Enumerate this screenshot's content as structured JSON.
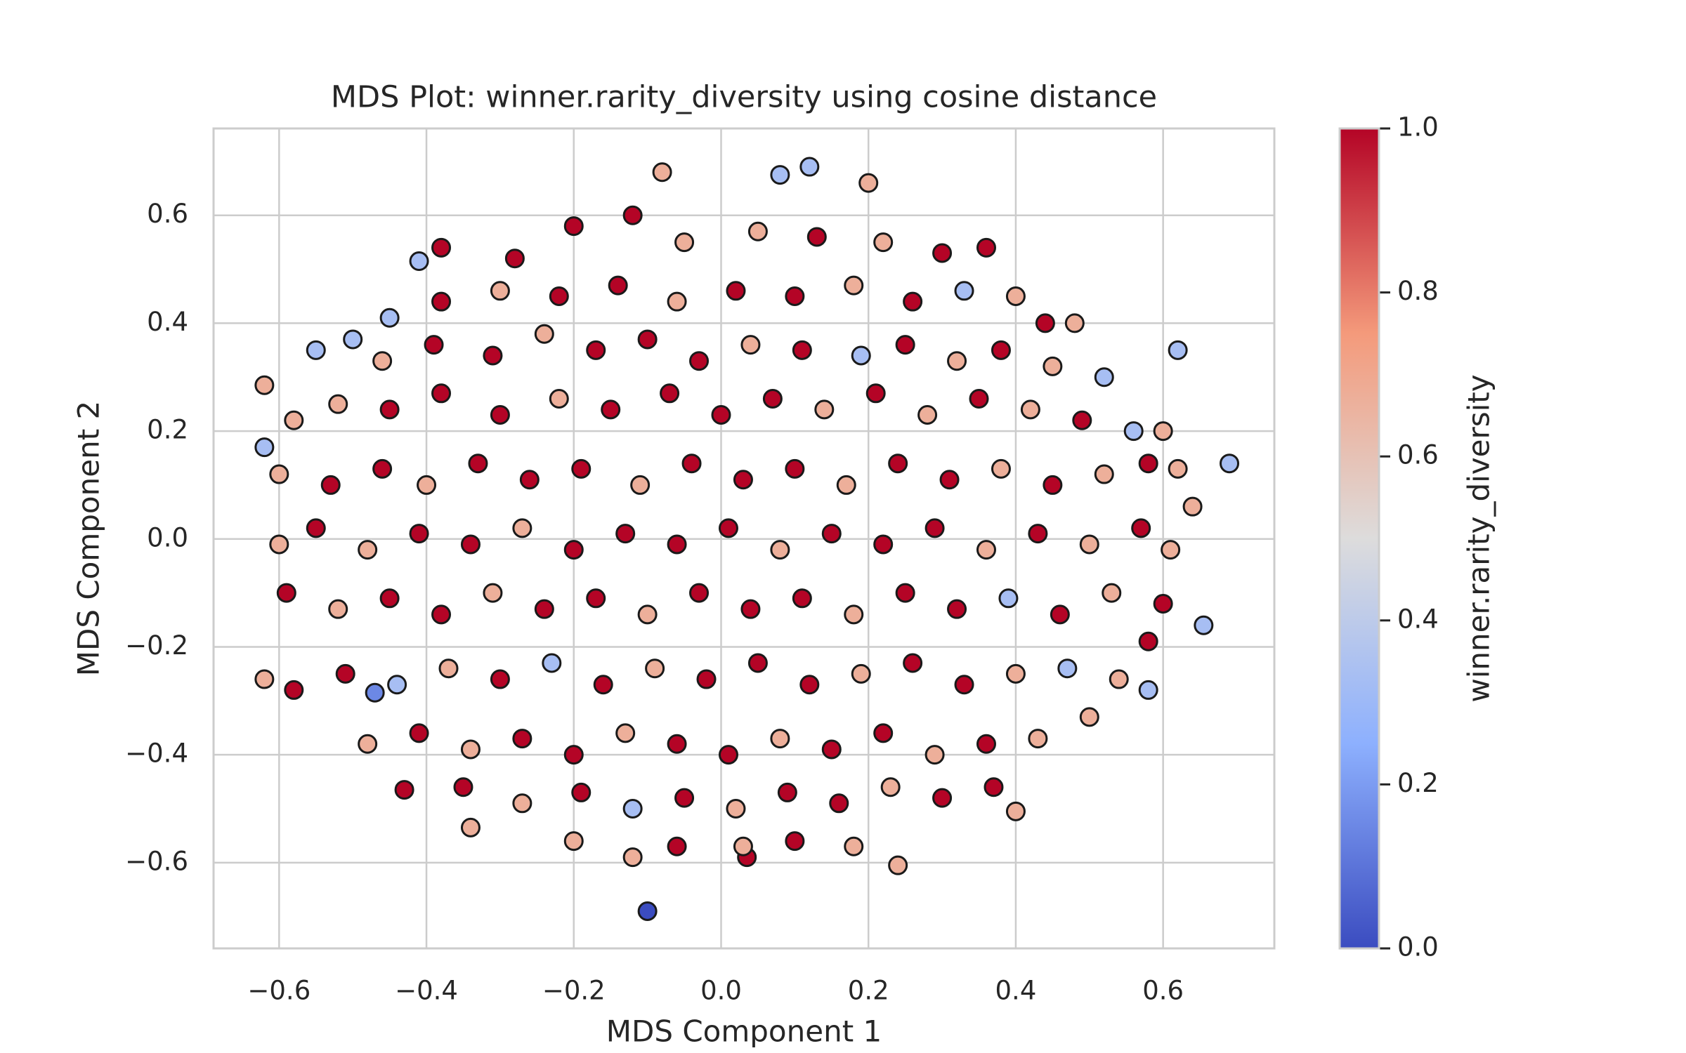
{
  "chart_data": {
    "type": "scatter",
    "title": "MDS Plot: winner.rarity_diversity using cosine distance",
    "x_label": "MDS Component 1",
    "y_label": "MDS Component 2",
    "xlim": [
      -0.689,
      0.751
    ],
    "ylim": [
      -0.759,
      0.761
    ],
    "xticks": [
      {
        "value": -0.6,
        "label": "−0.6"
      },
      {
        "value": -0.4,
        "label": "−0.4"
      },
      {
        "value": -0.2,
        "label": "−0.2"
      },
      {
        "value": 0,
        "label": "0.0"
      },
      0.2,
      0.4,
      0.6
    ],
    "yticks": [
      {
        "value": -0.6,
        "label": "−0.6"
      },
      {
        "value": -0.4,
        "label": "−0.4"
      },
      {
        "value": -0.2,
        "label": "−0.2"
      },
      {
        "value": 0,
        "label": "0.0"
      },
      0.2,
      0.4,
      0.6
    ],
    "grid": true,
    "marker_edge_color": "#1a1a1a",
    "colormap": [
      "#3b4cc0",
      "#8db0fe",
      "#dddcdc",
      "#f49a7b",
      "#b40426"
    ],
    "colorbar": {
      "label": "winner.rarity_diversity",
      "clim": [
        0,
        1
      ],
      "ticks": [
        {
          "value": 0,
          "label": "0.0"
        },
        0.2,
        0.4,
        0.6,
        0.8,
        {
          "value": 1,
          "label": "1.0"
        }
      ]
    },
    "x": [
      0.69,
      -0.62,
      -0.62,
      -0.1,
      -0.08,
      0.12,
      0.08,
      0.2,
      0.655,
      0.62,
      0.64,
      -0.62,
      -0.47,
      -0.43,
      0.24,
      0.035,
      -0.41,
      -0.38,
      0.58,
      0.48,
      0.4,
      -0.34,
      -0.2,
      -0.12,
      -0.05,
      0.05,
      0.13,
      0.22,
      0.3,
      0.36,
      -0.28,
      -0.45,
      -0.38,
      -0.3,
      -0.22,
      -0.14,
      -0.06,
      0.02,
      0.1,
      0.18,
      0.26,
      0.33,
      0.4,
      0.44,
      -0.55,
      -0.5,
      -0.46,
      -0.39,
      -0.31,
      -0.24,
      -0.17,
      -0.1,
      -0.03,
      0.04,
      0.11,
      0.19,
      0.25,
      0.32,
      0.38,
      0.45,
      0.52,
      -0.58,
      -0.52,
      -0.45,
      -0.38,
      -0.3,
      -0.22,
      -0.15,
      -0.07,
      0,
      0.07,
      0.14,
      0.21,
      0.28,
      0.35,
      0.42,
      0.49,
      0.56,
      0.6,
      -0.6,
      -0.53,
      -0.46,
      -0.4,
      -0.33,
      -0.26,
      -0.19,
      -0.11,
      -0.04,
      0.03,
      0.1,
      0.17,
      0.24,
      0.31,
      0.38,
      0.45,
      0.52,
      0.58,
      0.62,
      -0.6,
      -0.55,
      -0.48,
      -0.41,
      -0.34,
      -0.27,
      -0.2,
      -0.13,
      -0.06,
      0.01,
      0.08,
      0.15,
      0.22,
      0.29,
      0.36,
      0.43,
      0.5,
      0.57,
      0.61,
      -0.59,
      -0.52,
      -0.45,
      -0.38,
      -0.31,
      -0.24,
      -0.17,
      -0.1,
      -0.03,
      0.04,
      0.11,
      0.18,
      0.25,
      0.32,
      0.39,
      0.46,
      0.53,
      0.6,
      -0.58,
      -0.51,
      -0.44,
      -0.37,
      -0.3,
      -0.23,
      -0.16,
      -0.09,
      -0.02,
      0.05,
      0.12,
      0.19,
      0.26,
      0.33,
      0.4,
      0.47,
      0.54,
      0.58,
      -0.48,
      -0.41,
      -0.34,
      -0.27,
      -0.2,
      -0.13,
      -0.06,
      0.01,
      0.08,
      0.15,
      0.22,
      0.29,
      0.36,
      0.43,
      0.5,
      -0.35,
      -0.27,
      -0.19,
      -0.12,
      -0.05,
      0.02,
      0.09,
      0.16,
      0.23,
      0.3,
      0.37,
      -0.2,
      -0.12,
      -0.06,
      0.03,
      0.1,
      0.18
    ],
    "values": [
      0.14,
      0.285,
      0.17,
      -0.69,
      0.68,
      0.69,
      0.675,
      0.66,
      -0.16,
      0.35,
      0.06,
      -0.26,
      -0.285,
      -0.465,
      -0.605,
      -0.59,
      0.515,
      0.54,
      -0.28,
      0.4,
      -0.505,
      -0.535,
      0.58,
      0.6,
      0.55,
      0.57,
      0.56,
      0.55,
      0.53,
      0.54,
      0.52,
      0.41,
      0.44,
      0.46,
      0.45,
      0.47,
      0.44,
      0.46,
      0.45,
      0.47,
      0.44,
      0.46,
      0.45,
      0.4,
      0.35,
      0.37,
      0.33,
      0.36,
      0.34,
      0.38,
      0.35,
      0.37,
      0.33,
      0.36,
      0.35,
      0.34,
      0.36,
      0.33,
      0.35,
      0.32,
      0.3,
      0.22,
      0.25,
      0.24,
      0.27,
      0.23,
      0.26,
      0.24,
      0.27,
      0.23,
      0.26,
      0.24,
      0.27,
      0.23,
      0.26,
      0.24,
      0.22,
      0.2,
      0.2,
      0.12,
      0.1,
      0.13,
      0.1,
      0.14,
      0.11,
      0.13,
      0.1,
      0.14,
      0.11,
      0.13,
      0.1,
      0.14,
      0.11,
      0.13,
      0.1,
      0.12,
      0.14,
      0.13,
      -0.01,
      0.02,
      -0.02,
      0.01,
      -0.01,
      0.02,
      -0.02,
      0.01,
      -0.01,
      0.02,
      -0.02,
      0.01,
      -0.01,
      0.02,
      -0.02,
      0.01,
      -0.01,
      0.02,
      -0.02,
      -0.1,
      -0.13,
      -0.11,
      -0.14,
      -0.1,
      -0.13,
      -0.11,
      -0.14,
      -0.1,
      -0.13,
      -0.11,
      -0.14,
      -0.1,
      -0.13,
      -0.11,
      -0.14,
      -0.1,
      -0.12,
      -0.28,
      -0.25,
      -0.27,
      -0.24,
      -0.26,
      -0.23,
      -0.27,
      -0.24,
      -0.26,
      -0.23,
      -0.27,
      -0.25,
      -0.23,
      -0.27,
      -0.25,
      -0.24,
      -0.26,
      -0.19,
      -0.38,
      -0.36,
      -0.39,
      -0.37,
      -0.4,
      -0.36,
      -0.38,
      -0.4,
      -0.37,
      -0.39,
      -0.36,
      -0.4,
      -0.38,
      -0.37,
      -0.33,
      -0.46,
      -0.49,
      -0.47,
      -0.5,
      -0.48,
      -0.5,
      -0.47,
      -0.49,
      -0.46,
      -0.48,
      -0.46,
      -0.56,
      -0.59,
      -0.57,
      -0.57,
      -0.56,
      -0.57
    ],
    "color_values": [
      0.33,
      0.67,
      0.33,
      0,
      0.67,
      0.33,
      0.33,
      0.67,
      0.33,
      0.33,
      0.67,
      0.67,
      0.15,
      1,
      0.67,
      1,
      0.33,
      1,
      0.33,
      0.67,
      0.67,
      0.67,
      1,
      1,
      0.67,
      0.67,
      1,
      0.67,
      1,
      1,
      1,
      0.33,
      1,
      0.67,
      1,
      1,
      0.67,
      1,
      1,
      0.67,
      1,
      0.33,
      0.67,
      1,
      0.33,
      0.33,
      0.67,
      1,
      1,
      0.67,
      1,
      1,
      1,
      0.67,
      1,
      0.33,
      1,
      0.67,
      1,
      0.67,
      0.33,
      0.67,
      0.67,
      1,
      1,
      1,
      0.67,
      1,
      1,
      1,
      1,
      0.67,
      1,
      0.67,
      1,
      0.67,
      1,
      0.33,
      0.67,
      0.67,
      1,
      1,
      0.67,
      1,
      1,
      1,
      0.67,
      1,
      1,
      1,
      0.67,
      1,
      1,
      0.67,
      1,
      0.67,
      1,
      0.67,
      0.67,
      1,
      0.67,
      1,
      1,
      0.67,
      1,
      1,
      1,
      1,
      0.67,
      1,
      1,
      1,
      0.67,
      1,
      0.67,
      1,
      0.67,
      1,
      0.67,
      1,
      1,
      0.67,
      1,
      1,
      0.67,
      1,
      1,
      1,
      0.67,
      1,
      1,
      0.33,
      1,
      0.67,
      1,
      1,
      1,
      0.33,
      0.67,
      1,
      0.33,
      1,
      0.67,
      1,
      1,
      1,
      0.67,
      1,
      1,
      0.67,
      0.33,
      0.67,
      1,
      0.67,
      1,
      0.67,
      1,
      1,
      0.67,
      1,
      1,
      0.67,
      1,
      1,
      0.67,
      1,
      0.67,
      0.67,
      1,
      0.67,
      1,
      0.33,
      1,
      0.67,
      1,
      1,
      0.67,
      1,
      1,
      0.67,
      0.67,
      1,
      0.67,
      1,
      0.67
    ]
  }
}
